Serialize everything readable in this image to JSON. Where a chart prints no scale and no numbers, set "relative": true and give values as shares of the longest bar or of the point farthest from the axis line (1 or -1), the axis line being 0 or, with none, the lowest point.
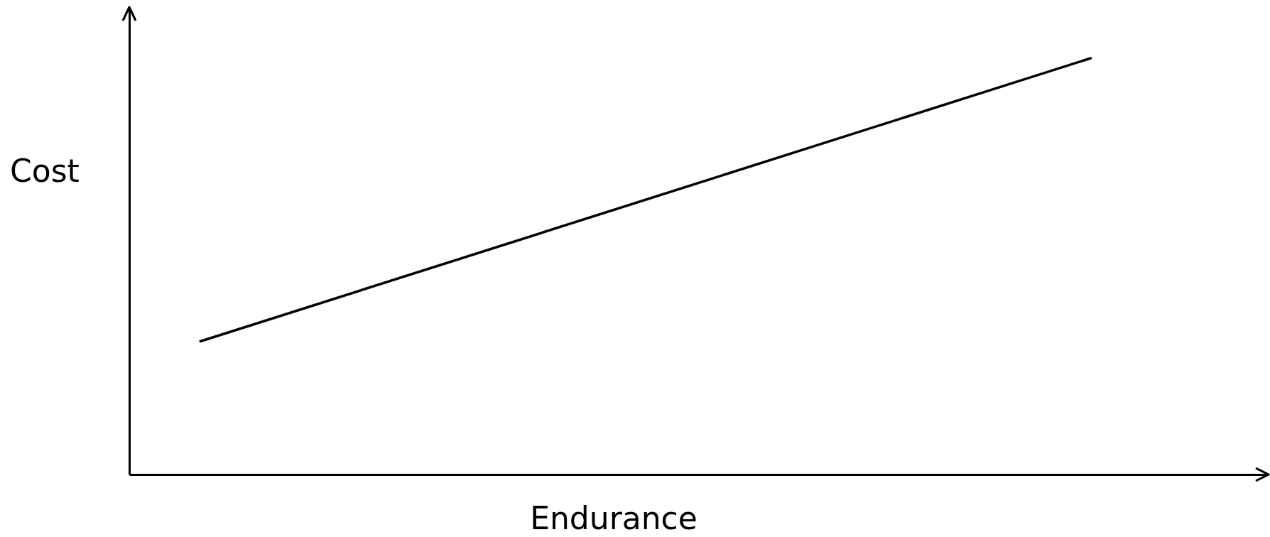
{
  "chart_data": {
    "type": "line",
    "xlabel": "Endurance",
    "ylabel": "Cost",
    "relative": true,
    "categories": [
      null,
      null,
      null,
      null,
      null,
      null,
      null,
      null,
      null,
      null,
      null,
      null,
      null,
      null,
      null,
      null,
      null,
      null,
      null,
      null,
      null,
      null,
      null,
      null,
      null,
      null,
      null,
      null,
      null,
      null,
      null,
      null,
      null
    ],
    "series": [
      {
        "color": "#000000",
        "values": [
          null,
          null,
          0.32,
          null,
          null,
          null,
          null,
          null,
          null,
          null,
          null,
          null,
          null,
          null,
          null,
          null,
          null,
          null,
          null,
          null,
          null,
          null,
          null,
          null,
          null,
          null,
          null,
          1,
          null,
          null,
          null,
          null,
          null
        ]
      }
    ]
  }
}
